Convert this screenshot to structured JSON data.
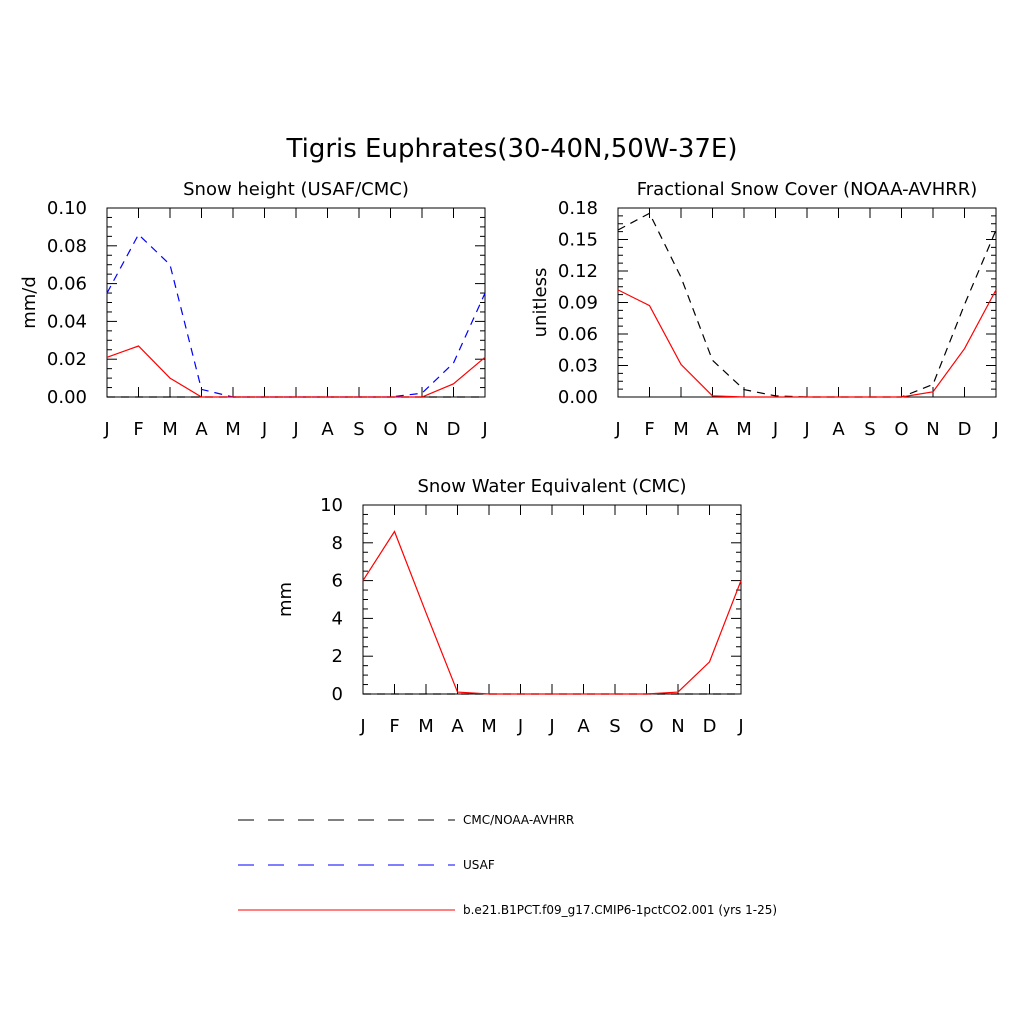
{
  "figure": {
    "title": "Tigris Euphrates(30-40N,50W-37E)"
  },
  "legend": [
    {
      "label": "CMC/NOAA-AVHRR",
      "color": "#000000",
      "dashed": true
    },
    {
      "label": "USAF",
      "color": "#0000ff",
      "dashed": true
    },
    {
      "label": "b.e21.B1PCT.f09_g17.CMIP6-1pctCO2.001 (yrs 1-25)",
      "color": "#ff0000",
      "dashed": false
    }
  ],
  "chart_data": [
    {
      "type": "line",
      "title": "Snow height (USAF/CMC)",
      "xlabel": "",
      "ylabel": "mm/d",
      "categories": [
        "J",
        "F",
        "M",
        "A",
        "M",
        "J",
        "J",
        "A",
        "S",
        "O",
        "N",
        "D",
        "J"
      ],
      "ylim": [
        0,
        0.1
      ],
      "yticks": [
        "0.00",
        "0.02",
        "0.04",
        "0.06",
        "0.08",
        "0.10"
      ],
      "series": [
        {
          "name": "CMC/NOAA-AVHRR",
          "color": "#000000",
          "dashed": true,
          "values": [
            0,
            0,
            0,
            0,
            0,
            0,
            0,
            0,
            0,
            0,
            0,
            0,
            0
          ]
        },
        {
          "name": "USAF",
          "color": "#0000ff",
          "dashed": true,
          "values": [
            0.055,
            0.086,
            0.07,
            0.004,
            0.0,
            0.0,
            0.0,
            0.0,
            0.0,
            0.0,
            0.002,
            0.018,
            0.055
          ]
        },
        {
          "name": "b.e21.B1PCT.f09_g17.CMIP6-1pctCO2.001 (yrs 1-25)",
          "color": "#ff0000",
          "dashed": false,
          "values": [
            0.021,
            0.027,
            0.01,
            0.0,
            0.0,
            0.0,
            0.0,
            0.0,
            0.0,
            0.0,
            0.0,
            0.007,
            0.021
          ]
        }
      ]
    },
    {
      "type": "line",
      "title": "Fractional Snow Cover (NOAA-AVHRR)",
      "xlabel": "",
      "ylabel": "unitless",
      "categories": [
        "J",
        "F",
        "M",
        "A",
        "M",
        "J",
        "J",
        "A",
        "S",
        "O",
        "N",
        "D",
        "J"
      ],
      "ylim": [
        0,
        0.18
      ],
      "yticks": [
        "0.00",
        "0.03",
        "0.06",
        "0.09",
        "0.12",
        "0.15",
        "0.18"
      ],
      "series": [
        {
          "name": "CMC/NOAA-AVHRR",
          "color": "#000000",
          "dashed": true,
          "values": [
            0.159,
            0.175,
            0.114,
            0.035,
            0.007,
            0.001,
            0.0,
            0.0,
            0.0,
            0.0,
            0.012,
            0.088,
            0.159
          ]
        },
        {
          "name": "b.e21.B1PCT.f09_g17.CMIP6-1pctCO2.001 (yrs 1-25)",
          "color": "#ff0000",
          "dashed": false,
          "values": [
            0.102,
            0.087,
            0.031,
            0.001,
            0.0,
            0.0,
            0.0,
            0.0,
            0.0,
            0.0,
            0.005,
            0.046,
            0.102
          ]
        }
      ]
    },
    {
      "type": "line",
      "title": "Snow Water Equivalent (CMC)",
      "xlabel": "",
      "ylabel": "mm",
      "categories": [
        "J",
        "F",
        "M",
        "A",
        "M",
        "J",
        "J",
        "A",
        "S",
        "O",
        "N",
        "D",
        "J"
      ],
      "ylim": [
        0,
        10
      ],
      "yticks": [
        "0",
        "2",
        "4",
        "6",
        "8",
        "10"
      ],
      "series": [
        {
          "name": "CMC/NOAA-AVHRR",
          "color": "#000000",
          "dashed": true,
          "values": [
            0,
            0,
            0,
            0,
            0,
            0,
            0,
            0,
            0,
            0,
            0,
            0,
            0
          ]
        },
        {
          "name": "b.e21.B1PCT.f09_g17.CMIP6-1pctCO2.001 (yrs 1-25)",
          "color": "#ff0000",
          "dashed": false,
          "values": [
            6.0,
            8.6,
            4.3,
            0.1,
            0.0,
            0.0,
            0.0,
            0.0,
            0.0,
            0.0,
            0.1,
            1.7,
            6.0
          ]
        }
      ]
    }
  ]
}
